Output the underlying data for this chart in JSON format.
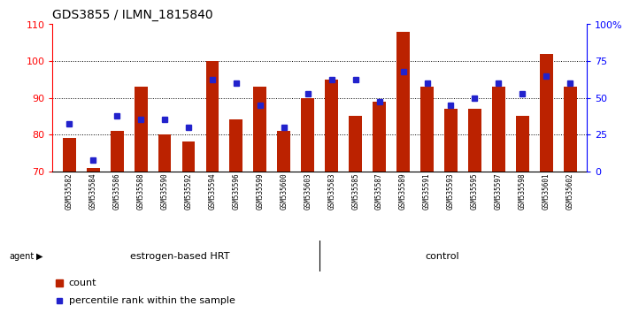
{
  "title": "GDS3855 / ILMN_1815840",
  "samples": [
    "GSM535582",
    "GSM535584",
    "GSM535586",
    "GSM535588",
    "GSM535590",
    "GSM535592",
    "GSM535594",
    "GSM535596",
    "GSM535599",
    "GSM535600",
    "GSM535603",
    "GSM535583",
    "GSM535585",
    "GSM535587",
    "GSM535589",
    "GSM535591",
    "GSM535593",
    "GSM535595",
    "GSM535597",
    "GSM535598",
    "GSM535601",
    "GSM535602"
  ],
  "bar_heights": [
    79,
    71,
    81,
    93,
    80,
    78,
    100,
    84,
    93,
    81,
    90,
    95,
    85,
    89,
    108,
    93,
    87,
    87,
    93,
    85,
    102,
    93
  ],
  "blue_left_axis": [
    83,
    73,
    85,
    84,
    84,
    82,
    95,
    94,
    88,
    82,
    91,
    95,
    95,
    89,
    97,
    94,
    88,
    90,
    94,
    91,
    96,
    94
  ],
  "y_min": 70,
  "y_max": 110,
  "y_ticks": [
    70,
    80,
    90,
    100,
    110
  ],
  "right_y_labels": [
    "0",
    "25",
    "50",
    "75",
    "100%"
  ],
  "right_y_tick_vals": [
    0,
    25,
    50,
    75,
    100
  ],
  "group1_label": "estrogen-based HRT",
  "group2_label": "control",
  "group1_count": 11,
  "group2_count": 11,
  "agent_label": "agent",
  "bar_color": "#bb2200",
  "dot_color": "#2222cc",
  "group_bg_color": "#88ee66",
  "xtick_bg_color": "#d8d8d8",
  "legend_count": "count",
  "legend_pct": "percentile rank within the sample"
}
